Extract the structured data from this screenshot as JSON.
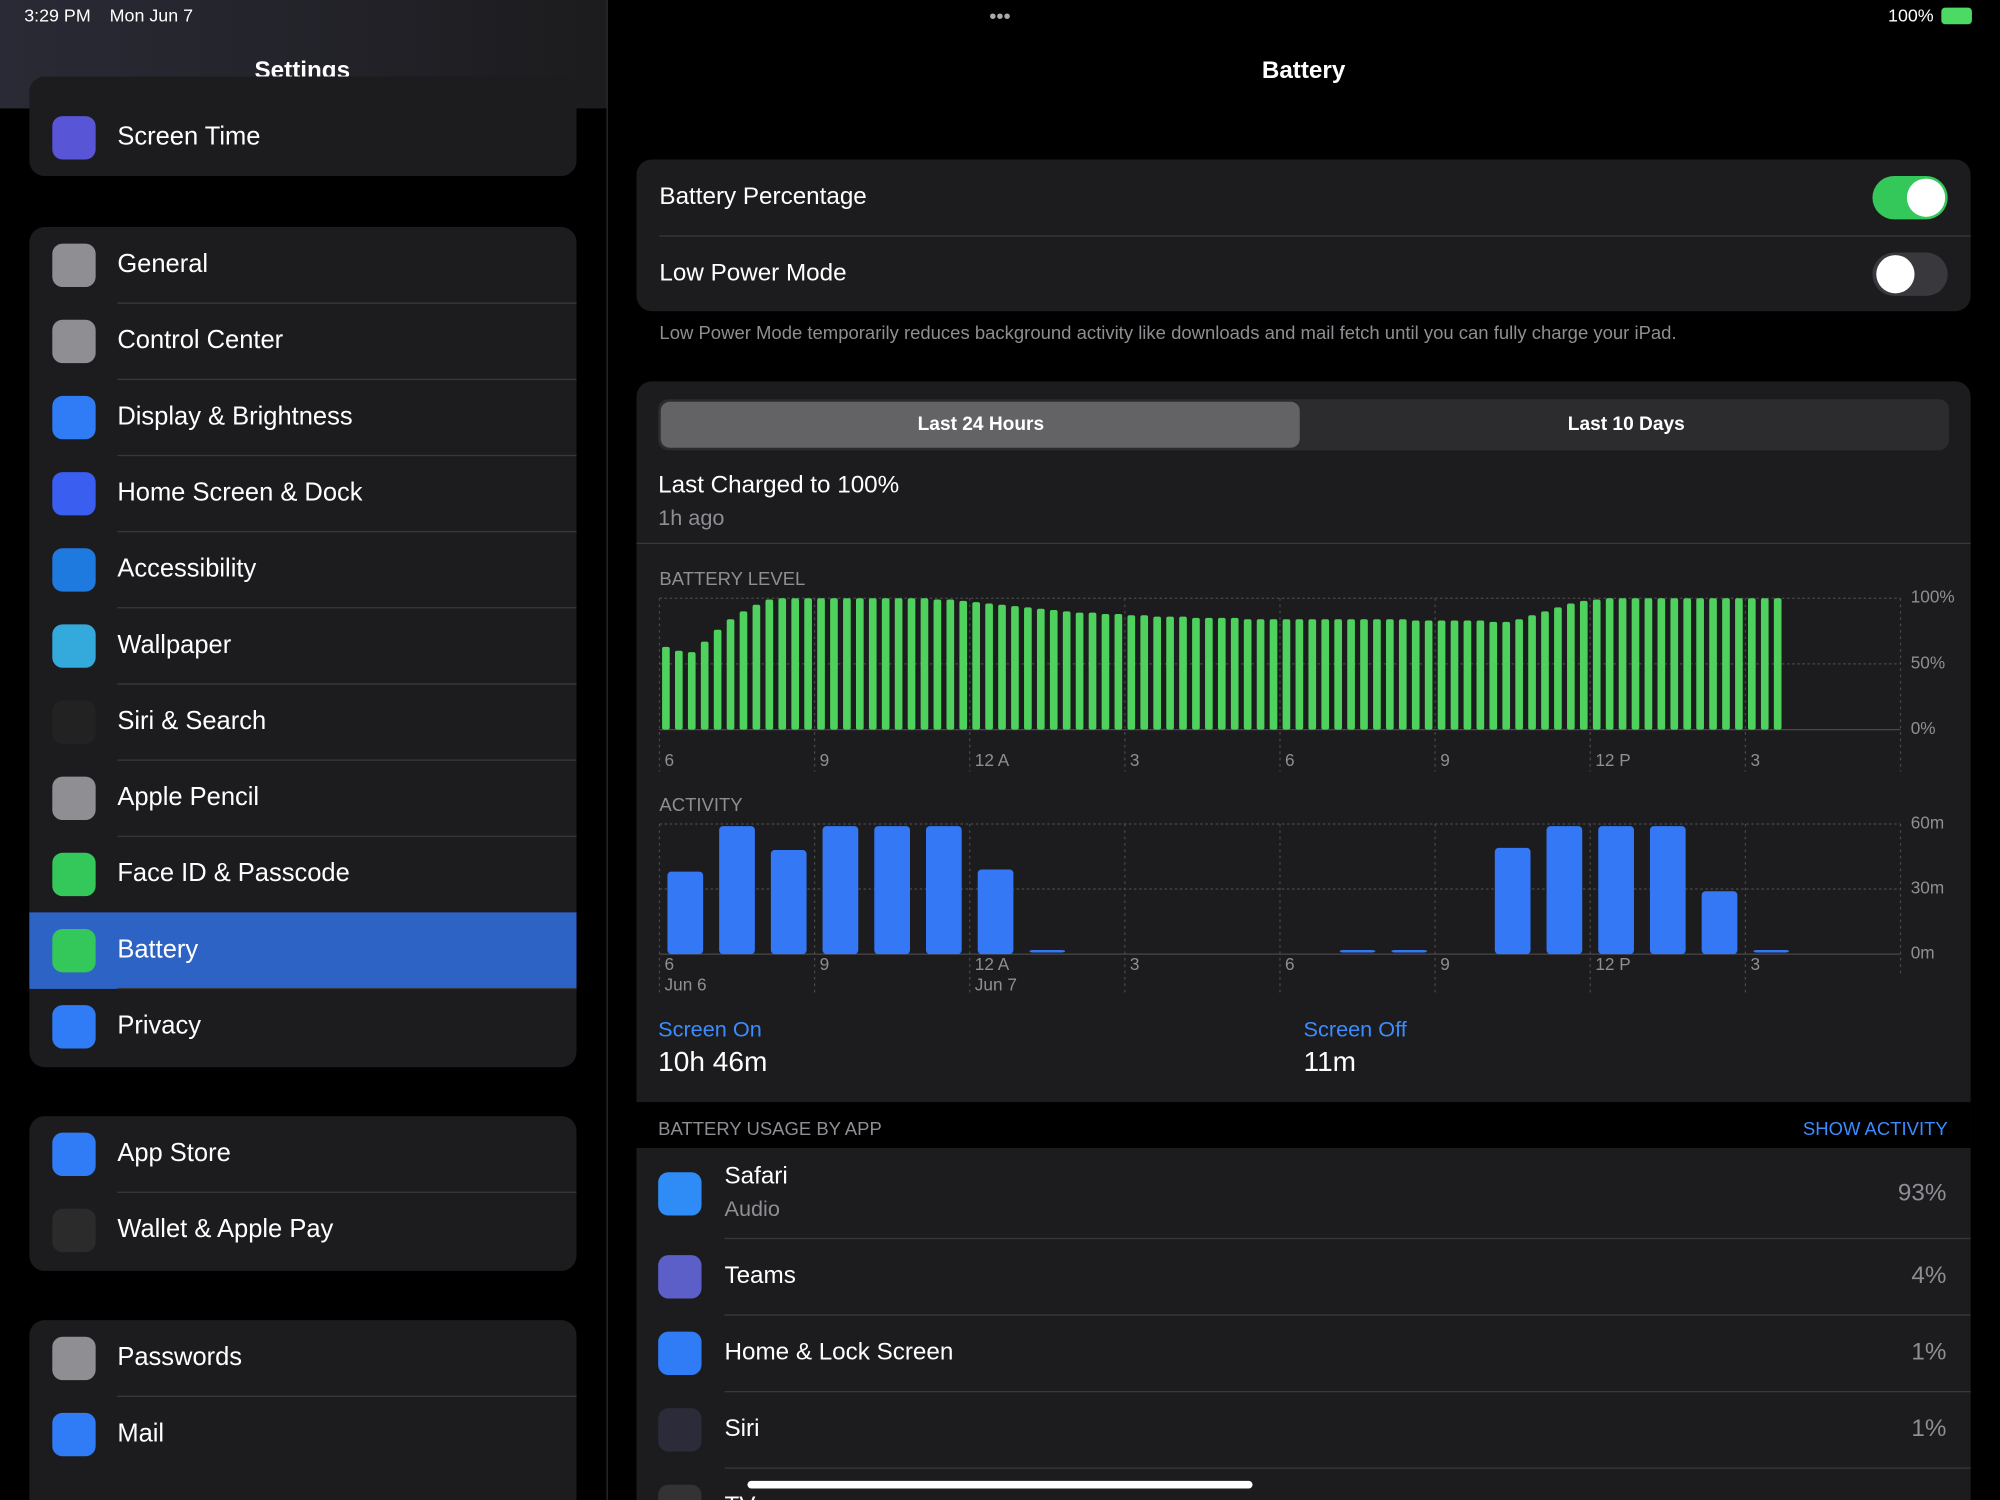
{
  "status_bar": {
    "time": "3:29 PM",
    "date": "Mon Jun 7",
    "battery": "100%"
  },
  "sidebar": {
    "title": "Settings",
    "selected": "Battery",
    "groups": [
      {
        "items": [
          "Screen Time"
        ]
      },
      {
        "items": [
          "General",
          "Control Center",
          "Display & Brightness",
          "Home Screen & Dock",
          "Accessibility",
          "Wallpaper",
          "Siri & Search",
          "Apple Pencil",
          "Face ID & Passcode",
          "Battery",
          "Privacy"
        ]
      },
      {
        "items": [
          "App Store",
          "Wallet & Apple Pay"
        ]
      },
      {
        "items": [
          "Passwords",
          "Mail"
        ]
      }
    ]
  },
  "detail": {
    "title": "Battery",
    "settings": [
      {
        "label": "Battery Percentage",
        "on": true
      },
      {
        "label": "Low Power Mode",
        "on": false
      }
    ],
    "footnote": "Low Power Mode temporarily reduces background activity like downloads and mail fetch until you can fully charge your iPad.",
    "tabs": [
      "Last 24 Hours",
      "Last 10 Days"
    ],
    "selected_tab": 0,
    "last_charged": "Last Charged to 100%",
    "last_charged_time": "1h ago",
    "screen_on_label": "Screen On",
    "screen_on": "10h 46m",
    "screen_off_label": "Screen Off",
    "screen_off": "11m",
    "usage_header": "BATTERY USAGE BY APP",
    "show_activity": "SHOW ACTIVITY",
    "apps": [
      {
        "name": "Safari",
        "detail": "Audio",
        "percent": "93%"
      },
      {
        "name": "Teams",
        "percent": "4%"
      },
      {
        "name": "Home & Lock Screen",
        "percent": "1%"
      },
      {
        "name": "Siri",
        "percent": "1%"
      },
      {
        "name": "TV"
      }
    ]
  },
  "chart_data": [
    {
      "type": "bar",
      "title": "BATTERY LEVEL",
      "color": "#4fd15e",
      "grid": true,
      "x_labels": [
        "6",
        "9",
        "12 A",
        "3",
        "6",
        "9",
        "12 P",
        "3"
      ],
      "values": [
        63,
        60,
        59,
        67,
        76,
        84,
        90,
        95,
        99,
        100,
        100,
        100,
        100,
        100,
        100,
        100,
        100,
        100,
        100,
        100,
        100,
        99,
        99,
        98,
        97,
        96,
        95,
        94,
        93,
        92,
        91,
        90,
        89,
        89,
        88,
        88,
        87,
        87,
        86,
        86,
        86,
        85,
        85,
        85,
        85,
        84,
        84,
        84,
        84,
        84,
        84,
        84,
        84,
        84,
        84,
        84,
        84,
        84,
        83,
        83,
        83,
        83,
        83,
        83,
        82,
        82,
        84,
        87,
        90,
        93,
        96,
        98,
        99,
        100,
        100,
        100,
        100,
        100,
        100,
        100,
        100,
        100,
        100,
        100,
        100,
        100,
        100
      ],
      "ylim": [
        0,
        100
      ],
      "yticks": [
        {
          "value": 0,
          "label": "0%"
        },
        {
          "value": 50,
          "label": "50%"
        },
        {
          "value": 100,
          "label": "100%"
        }
      ]
    },
    {
      "type": "bar",
      "title": "ACTIVITY",
      "color": "#3478f6",
      "grid": true,
      "x_labels": [
        "6",
        "9",
        "12 A",
        "3",
        "6",
        "9",
        "12 P",
        "3"
      ],
      "date_labels": [
        "Jun 6",
        "Jun 7"
      ],
      "values": [
        38,
        59,
        48,
        59,
        59,
        59,
        39,
        1,
        0,
        0,
        0,
        0,
        0,
        1,
        1,
        0,
        49,
        59,
        59,
        59,
        29,
        1
      ],
      "ylim": [
        0,
        60
      ],
      "yticks": [
        {
          "value": 0,
          "label": "0m"
        },
        {
          "value": 30,
          "label": "30m"
        },
        {
          "value": 60,
          "label": "60m"
        }
      ]
    }
  ]
}
